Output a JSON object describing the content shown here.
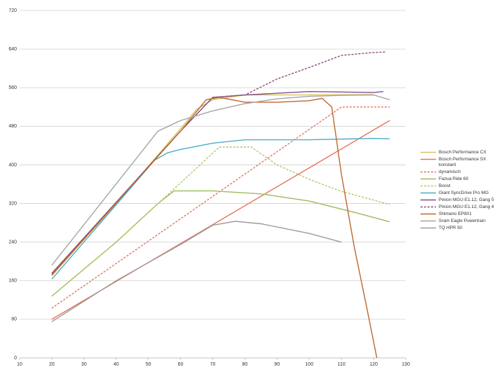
{
  "chart_data": {
    "type": "line",
    "xlim": [
      10,
      130
    ],
    "xticks": [
      10,
      20,
      30,
      40,
      50,
      60,
      70,
      80,
      90,
      100,
      110,
      120,
      130
    ],
    "ylim": [
      0,
      720
    ],
    "yticks": [
      0,
      80,
      160,
      240,
      320,
      400,
      480,
      560,
      640,
      720
    ],
    "grid": true,
    "legend": "right",
    "series": [
      {
        "name": "Bosch Performance CX",
        "color": "#d8c25c",
        "dash": false,
        "x": [
          20,
          40,
          60,
          65,
          70,
          80,
          100,
          120
        ],
        "values": [
          170,
          320,
          475,
          515,
          535,
          545,
          545,
          546
        ]
      },
      {
        "name": "Bosch Performance SX konstant",
        "color": "#e8735b",
        "dash": false,
        "x": [
          20,
          125
        ],
        "values": [
          80,
          492
        ]
      },
      {
        "name": "dynamisch",
        "color": "#e8735b",
        "dash": true,
        "x": [
          20,
          110,
          125
        ],
        "values": [
          103,
          520,
          520
        ]
      },
      {
        "name": "Fazua Ride 60",
        "color": "#9bbb59",
        "dash": false,
        "x": [
          20,
          40,
          53,
          58,
          70,
          85,
          100,
          115,
          125
        ],
        "values": [
          128,
          240,
          320,
          346,
          346,
          340,
          325,
          300,
          282
        ]
      },
      {
        "name": "Boost",
        "color": "#b3c76a",
        "dash": true,
        "x": [
          20,
          40,
          53,
          62,
          72,
          82,
          90,
          100,
          110,
          125
        ],
        "values": [
          128,
          240,
          320,
          375,
          437,
          437,
          400,
          370,
          345,
          318
        ]
      },
      {
        "name": "Giant SyncDrive Pro MG",
        "color": "#4bacc6",
        "dash": false,
        "x": [
          20,
          52,
          56,
          60,
          70,
          80,
          100,
          120,
          125
        ],
        "values": [
          163,
          410,
          425,
          432,
          445,
          452,
          452,
          455,
          454
        ]
      },
      {
        "name": "Pinion MGU E1.12, Gang 5",
        "color": "#7f4f8f",
        "dash": false,
        "x": [
          20,
          60,
          70,
          80,
          100,
          120,
          123
        ],
        "values": [
          175,
          470,
          540,
          545,
          552,
          550,
          552
        ]
      },
      {
        "name": "Pinion MGU E1.12, Gang 4",
        "color": "#8a4a7a",
        "dash": true,
        "x": [
          20,
          60,
          70,
          80,
          90,
          100,
          110,
          120,
          124
        ],
        "values": [
          175,
          470,
          540,
          545,
          578,
          602,
          627,
          633,
          634
        ]
      },
      {
        "name": "Shimano EP801",
        "color": "#c0662b",
        "dash": false,
        "x": [
          20,
          60,
          68,
          72,
          80,
          90,
          100,
          104,
          107,
          110,
          114,
          118,
          121
        ],
        "values": [
          172,
          470,
          535,
          540,
          530,
          530,
          533,
          538,
          520,
          380,
          230,
          100,
          0
        ]
      },
      {
        "name": "Sram Eagle Powertrain",
        "color": "#a5a5a5",
        "dash": false,
        "x": [
          20,
          53,
          60,
          70,
          80,
          90,
          100,
          110,
          120,
          125
        ],
        "values": [
          192,
          470,
          492,
          512,
          527,
          537,
          542,
          544,
          545,
          535
        ]
      },
      {
        "name": "TQ HPR 50",
        "color": "#a09a98",
        "dash": false,
        "x": [
          20,
          40,
          60,
          70,
          77,
          85,
          100,
          110
        ],
        "values": [
          75,
          160,
          235,
          275,
          283,
          278,
          258,
          240
        ]
      }
    ]
  }
}
